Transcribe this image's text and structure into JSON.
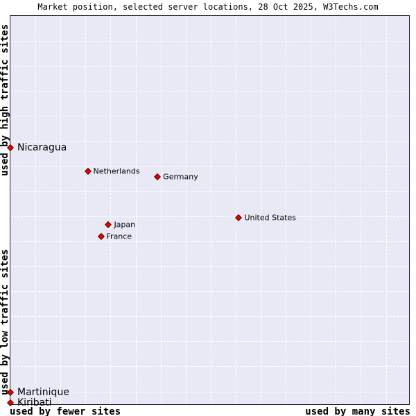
{
  "title": "Market position, selected server locations, 28 Oct 2025, W3Techs.com",
  "axes": {
    "y_top": "used by high traffic sites",
    "y_bottom": "used by low traffic sites",
    "x_left": "used by fewer sites",
    "x_right": "used by many sites"
  },
  "colors": {
    "plot_bg": "#e9e9f5",
    "plot_border": "#1a1a2e",
    "grid": "#ffffff",
    "marker_fill": "#ee0000",
    "marker_border": "#550000"
  },
  "chart_data": {
    "type": "scatter",
    "title": "Market position, selected server locations, 28 Oct 2025, W3Techs.com",
    "x_axis": {
      "meaning": "number of sites using",
      "left_label": "used by fewer sites",
      "right_label": "used by many sites",
      "range_pct": [
        0,
        100
      ]
    },
    "y_axis": {
      "meaning": "traffic level of sites using",
      "top_label": "used by high traffic sites",
      "bottom_label": "used by low traffic sites",
      "range_pct": [
        0,
        100
      ]
    },
    "grid": {
      "visible": true,
      "style": "dashed",
      "spacing_pct_x": 6.25,
      "spacing_pct_y": 6.42
    },
    "points": [
      {
        "label": "Nicaragua",
        "x_pct": 0.0,
        "y_pct": 33.9,
        "emphasis": true
      },
      {
        "label": "Netherlands",
        "x_pct": 19.4,
        "y_pct": 40.0,
        "emphasis": false
      },
      {
        "label": "Germany",
        "x_pct": 36.9,
        "y_pct": 41.4,
        "emphasis": false
      },
      {
        "label": "United States",
        "x_pct": 57.3,
        "y_pct": 51.9,
        "emphasis": false
      },
      {
        "label": "Japan",
        "x_pct": 24.6,
        "y_pct": 53.8,
        "emphasis": false
      },
      {
        "label": "France",
        "x_pct": 22.7,
        "y_pct": 56.7,
        "emphasis": false
      },
      {
        "label": "Martinique",
        "x_pct": 0.0,
        "y_pct": 97.0,
        "emphasis": true
      },
      {
        "label": "Kiribati",
        "x_pct": 0.0,
        "y_pct": 99.6,
        "emphasis": true
      }
    ]
  }
}
